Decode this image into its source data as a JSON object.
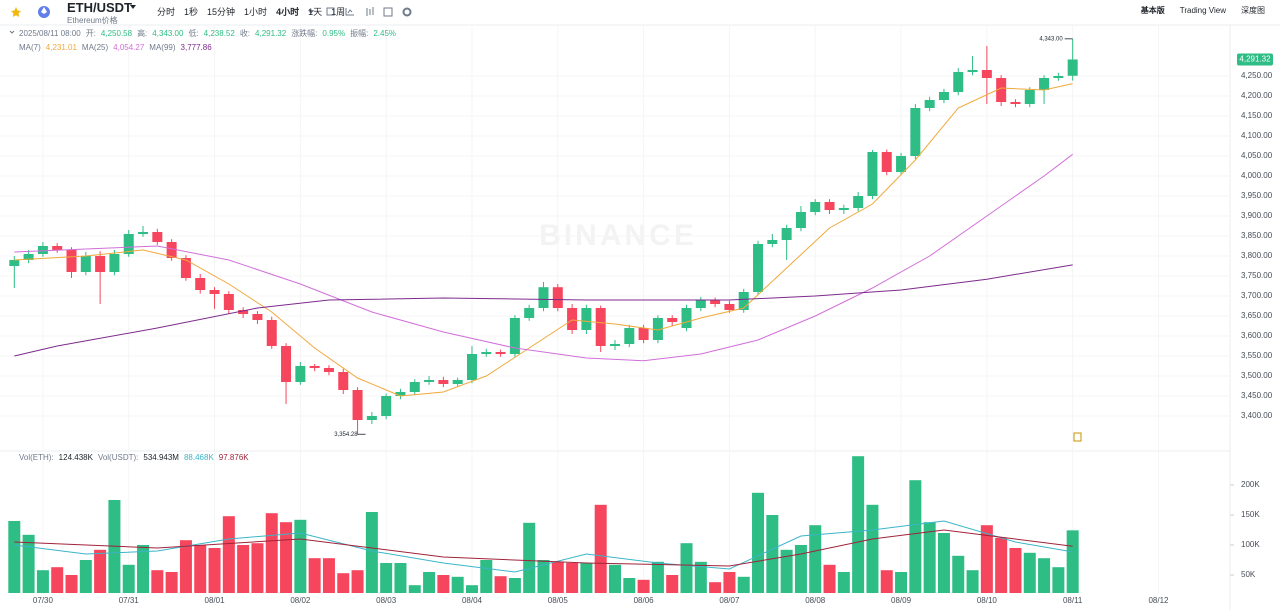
{
  "header": {
    "symbol": "ETH/USDT",
    "subtitle": "Ethereum价格",
    "intervals": [
      "分时",
      "1秒",
      "15分钟",
      "1小时",
      "4小时",
      "1天",
      "1周"
    ],
    "views": [
      "基本版",
      "Trading View",
      "深度图"
    ]
  },
  "info": {
    "time": "2025/08/11 08:00",
    "items": [
      {
        "label": "开:",
        "value": "4,250.58"
      },
      {
        "label": "高:",
        "value": "4,343.00"
      },
      {
        "label": "低:",
        "value": "4,238.52"
      },
      {
        "label": "收:",
        "value": "4,291.32"
      },
      {
        "label": "涨跌幅:",
        "value": "0.95%"
      },
      {
        "label": "振幅:",
        "value": "2.45%"
      }
    ]
  },
  "watermark": "BINANCE",
  "chart_data": [
    {
      "type": "candlestick",
      "up_color": "#2ebd85",
      "down_color": "#f6465d",
      "grid": true,
      "xlim": [
        -1,
        85
      ],
      "xticks": [
        {
          "value": 2,
          "label": "07/30"
        },
        {
          "value": 8,
          "label": "07/31"
        },
        {
          "value": 14,
          "label": "08/01"
        },
        {
          "value": 20,
          "label": "08/02"
        },
        {
          "value": 26,
          "label": "08/03"
        },
        {
          "value": 32,
          "label": "08/04"
        },
        {
          "value": 38,
          "label": "08/05"
        },
        {
          "value": 44,
          "label": "08/06"
        },
        {
          "value": 50,
          "label": "08/07"
        },
        {
          "value": 56,
          "label": "08/08"
        },
        {
          "value": 62,
          "label": "08/09"
        },
        {
          "value": 68,
          "label": "08/10"
        },
        {
          "value": 74,
          "label": "08/11"
        },
        {
          "value": 80,
          "label": "08/12"
        }
      ],
      "ylim": [
        3315,
        4377.5
      ],
      "yticks": [
        {
          "value": 3400,
          "label": "3,400.00"
        },
        {
          "value": 3450,
          "label": "3,450.00"
        },
        {
          "value": 3500,
          "label": "3,500.00"
        },
        {
          "value": 3550,
          "label": "3,550.00"
        },
        {
          "value": 3600,
          "label": "3,600.00"
        },
        {
          "value": 3650,
          "label": "3,650.00"
        },
        {
          "value": 3700,
          "label": "3,700.00"
        },
        {
          "value": 3750,
          "label": "3,750.00"
        },
        {
          "value": 3800,
          "label": "3,800.00"
        },
        {
          "value": 3850,
          "label": "3,850.00"
        },
        {
          "value": 3900,
          "label": "3,900.00"
        },
        {
          "value": 3950,
          "label": "3,950.00"
        },
        {
          "value": 4000,
          "label": "4,000.00"
        },
        {
          "value": 4050,
          "label": "4,050.00"
        },
        {
          "value": 4100,
          "label": "4,100.00"
        },
        {
          "value": 4150,
          "label": "4,150.00"
        },
        {
          "value": 4200,
          "label": "4,200.00"
        },
        {
          "value": 4250,
          "label": "4,250.00"
        }
      ],
      "open": [
        3775,
        3790,
        3805,
        3825,
        3815,
        3760,
        3800,
        3760,
        3805,
        3855,
        3860,
        3835,
        3795,
        3745,
        3715,
        3705,
        3665,
        3655,
        3640,
        3575,
        3485,
        3525,
        3520,
        3510,
        3465,
        3390,
        3400,
        3450,
        3460,
        3485,
        3490,
        3480,
        3490,
        3555,
        3560,
        3555,
        3645,
        3670,
        3722,
        3670,
        3615,
        3670,
        3575,
        3580,
        3620,
        3590,
        3645,
        3620,
        3670,
        3690,
        3680,
        3665,
        3710,
        3830,
        3840,
        3870,
        3910,
        3935,
        3915,
        3920,
        3950,
        4060,
        4010,
        4050,
        4170,
        4190,
        4210,
        4260,
        4265,
        4245,
        4185,
        4180,
        4215,
        4245,
        4250.58
      ],
      "high": [
        3800,
        3815,
        3835,
        3832,
        3822,
        3810,
        3812,
        3815,
        3865,
        3875,
        3868,
        3842,
        3802,
        3755,
        3722,
        3712,
        3672,
        3662,
        3648,
        3582,
        3535,
        3530,
        3527,
        3518,
        3472,
        3410,
        3456,
        3468,
        3492,
        3500,
        3498,
        3496,
        3575,
        3568,
        3566,
        3652,
        3678,
        3735,
        3730,
        3680,
        3678,
        3676,
        3590,
        3628,
        3628,
        3652,
        3652,
        3678,
        3698,
        3696,
        3688,
        3718,
        3838,
        3855,
        3878,
        3925,
        3942,
        3942,
        3928,
        3960,
        4065,
        4066,
        4058,
        4180,
        4198,
        4218,
        4270,
        4300,
        4325,
        4252,
        4192,
        4222,
        4252,
        4258,
        4343
      ],
      "low": [
        3720,
        3782,
        3798,
        3808,
        3745,
        3752,
        3680,
        3752,
        3798,
        3848,
        3828,
        3788,
        3738,
        3706,
        3668,
        3655,
        3645,
        3630,
        3568,
        3430,
        3478,
        3512,
        3502,
        3455,
        3354.28,
        3380,
        3392,
        3442,
        3452,
        3478,
        3472,
        3474,
        3482,
        3548,
        3548,
        3548,
        3638,
        3662,
        3662,
        3605,
        3605,
        3560,
        3565,
        3572,
        3582,
        3582,
        3626,
        3612,
        3662,
        3672,
        3658,
        3658,
        3702,
        3822,
        3790,
        3862,
        3902,
        3905,
        3905,
        3912,
        3942,
        4002,
        4002,
        4042,
        4162,
        4182,
        4202,
        4252,
        4180,
        4175,
        4172,
        4172,
        4180,
        4238,
        4238.52
      ],
      "close": [
        3790,
        3805,
        3825,
        3815,
        3760,
        3800,
        3760,
        3805,
        3855,
        3860,
        3835,
        3795,
        3745,
        3715,
        3705,
        3665,
        3655,
        3640,
        3575,
        3485,
        3525,
        3520,
        3510,
        3465,
        3390,
        3400,
        3450,
        3460,
        3485,
        3490,
        3480,
        3490,
        3555,
        3560,
        3555,
        3645,
        3670,
        3722,
        3670,
        3615,
        3670,
        3575,
        3580,
        3620,
        3590,
        3645,
        3635,
        3670,
        3690,
        3680,
        3665,
        3710,
        3830,
        3840,
        3870,
        3910,
        3935,
        3915,
        3920,
        3950,
        4060,
        4010,
        4050,
        4170,
        4190,
        4210,
        4260,
        4265,
        4245,
        4185,
        4180,
        4215,
        4245,
        4250,
        4291.32
      ],
      "last_label": "4,291.32",
      "high_label": "4,343.00",
      "low_label": "3,354.28",
      "series": [
        {
          "name": "MA(7)",
          "color": "#f0a93b",
          "value_label": "4,231.01",
          "x": [
            0,
            5,
            9,
            12,
            15,
            18,
            21,
            24,
            27,
            30,
            33,
            36,
            39,
            42,
            45,
            48,
            51,
            54,
            57,
            60,
            63,
            66,
            69,
            72,
            74
          ],
          "values": [
            3790,
            3800,
            3815,
            3790,
            3730,
            3660,
            3570,
            3495,
            3450,
            3460,
            3500,
            3570,
            3640,
            3630,
            3615,
            3645,
            3670,
            3770,
            3870,
            3930,
            4040,
            4170,
            4220,
            4215,
            4231.01
          ]
        },
        {
          "name": "MA(25)",
          "color": "#d16fd9",
          "value_label": "4,054.27",
          "x": [
            0,
            10,
            15,
            20,
            25,
            30,
            35,
            40,
            44,
            48,
            52,
            56,
            60,
            64,
            68,
            72,
            74
          ],
          "values": [
            3810,
            3825,
            3790,
            3730,
            3660,
            3610,
            3570,
            3545,
            3538,
            3555,
            3590,
            3650,
            3720,
            3800,
            3900,
            4000,
            4054.27
          ]
        },
        {
          "name": "MA(99)",
          "color": "#7d2a8c",
          "value_label": "3,777.86",
          "x": [
            0,
            3,
            10,
            17,
            22,
            30,
            40,
            50,
            56,
            62,
            68,
            74
          ],
          "values": [
            3550,
            3575,
            3620,
            3670,
            3690,
            3695,
            3690,
            3690,
            3700,
            3715,
            3742,
            3777.86
          ]
        }
      ]
    },
    {
      "type": "bar",
      "legend_items": [
        {
          "label": "Vol(ETH):",
          "value": "124.438K"
        },
        {
          "label": "Vol(USDT):",
          "value": "534.943M"
        }
      ],
      "ylim": [
        20000,
        250000
      ],
      "yticks": [
        {
          "value": 50000,
          "label": "50K"
        },
        {
          "value": 100000,
          "label": "100K"
        },
        {
          "value": 150000,
          "label": "150K"
        },
        {
          "value": 200000,
          "label": "200K"
        }
      ],
      "values": [
        140000,
        117000,
        58000,
        63000,
        50000,
        75000,
        92000,
        175000,
        67000,
        100000,
        58000,
        55000,
        108000,
        100000,
        95000,
        148000,
        100000,
        103000,
        153000,
        138000,
        142000,
        78000,
        78000,
        53000,
        58000,
        155000,
        70000,
        70000,
        33000,
        55000,
        50000,
        47000,
        33000,
        75000,
        48000,
        45000,
        137000,
        75000,
        72000,
        70000,
        70000,
        167000,
        67000,
        45000,
        42000,
        72000,
        50000,
        103000,
        72000,
        38000,
        55000,
        47000,
        187000,
        150000,
        92000,
        100000,
        133000,
        67000,
        55000,
        248000,
        167000,
        58000,
        55000,
        208000,
        138000,
        120000,
        82000,
        58000,
        133000,
        112000,
        95000,
        87000,
        78000,
        63000,
        124438
      ],
      "series": [
        {
          "color": "#3bb5c9",
          "value_label": "88.468K",
          "x": [
            0,
            5,
            10,
            15,
            20,
            25,
            30,
            35,
            40,
            45,
            50,
            55,
            60,
            65,
            70,
            74
          ],
          "values": [
            100000,
            85000,
            90000,
            110000,
            120000,
            90000,
            70000,
            55000,
            85000,
            70000,
            60000,
            115000,
            125000,
            140000,
            105000,
            88468
          ]
        },
        {
          "color": "#a0233a",
          "value_label": "97.876K",
          "x": [
            0,
            10,
            20,
            30,
            40,
            50,
            55,
            60,
            65,
            70,
            74
          ],
          "values": [
            105000,
            95000,
            110000,
            80000,
            70000,
            65000,
            85000,
            110000,
            125000,
            110000,
            97876
          ]
        }
      ]
    }
  ]
}
